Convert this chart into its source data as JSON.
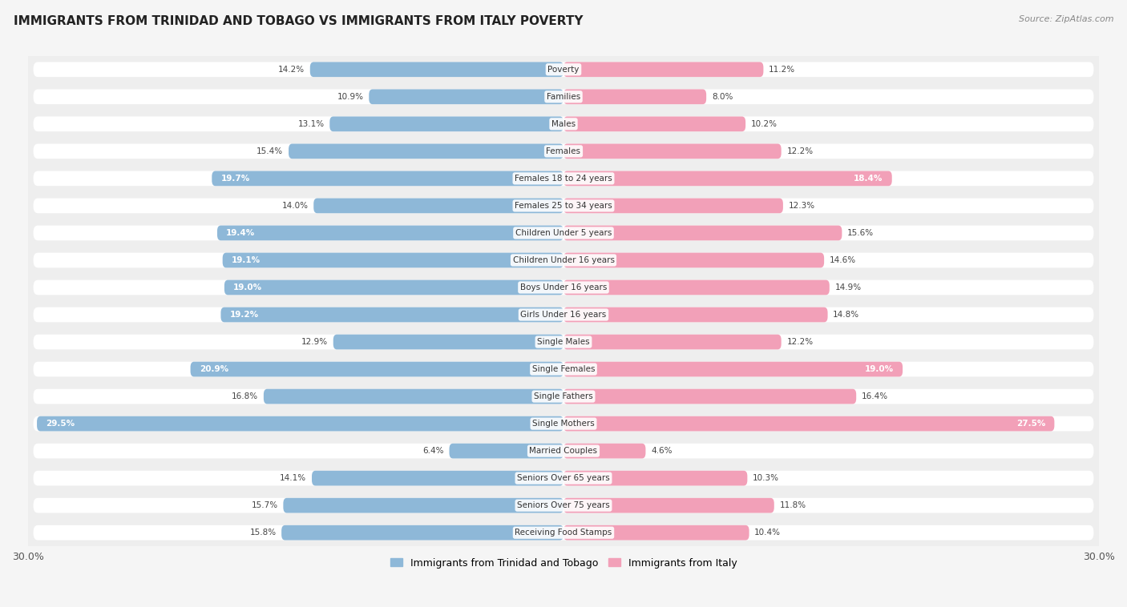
{
  "title": "IMMIGRANTS FROM TRINIDAD AND TOBAGO VS IMMIGRANTS FROM ITALY POVERTY",
  "source": "Source: ZipAtlas.com",
  "categories": [
    "Poverty",
    "Families",
    "Males",
    "Females",
    "Females 18 to 24 years",
    "Females 25 to 34 years",
    "Children Under 5 years",
    "Children Under 16 years",
    "Boys Under 16 years",
    "Girls Under 16 years",
    "Single Males",
    "Single Females",
    "Single Fathers",
    "Single Mothers",
    "Married Couples",
    "Seniors Over 65 years",
    "Seniors Over 75 years",
    "Receiving Food Stamps"
  ],
  "trinidad_values": [
    14.2,
    10.9,
    13.1,
    15.4,
    19.7,
    14.0,
    19.4,
    19.1,
    19.0,
    19.2,
    12.9,
    20.9,
    16.8,
    29.5,
    6.4,
    14.1,
    15.7,
    15.8
  ],
  "italy_values": [
    11.2,
    8.0,
    10.2,
    12.2,
    18.4,
    12.3,
    15.6,
    14.6,
    14.9,
    14.8,
    12.2,
    19.0,
    16.4,
    27.5,
    4.6,
    10.3,
    11.8,
    10.4
  ],
  "trinidad_color": "#8eb8d8",
  "italy_color": "#f2a0b8",
  "trinidad_label": "Immigrants from Trinidad and Tobago",
  "italy_label": "Immigrants from Italy",
  "row_bg_color": "#eeeeee",
  "bar_bg_color": "#ffffff",
  "xlim": 30.0,
  "label_fontsize": 7.5,
  "value_fontsize": 7.5,
  "white_text_threshold": 17.0
}
